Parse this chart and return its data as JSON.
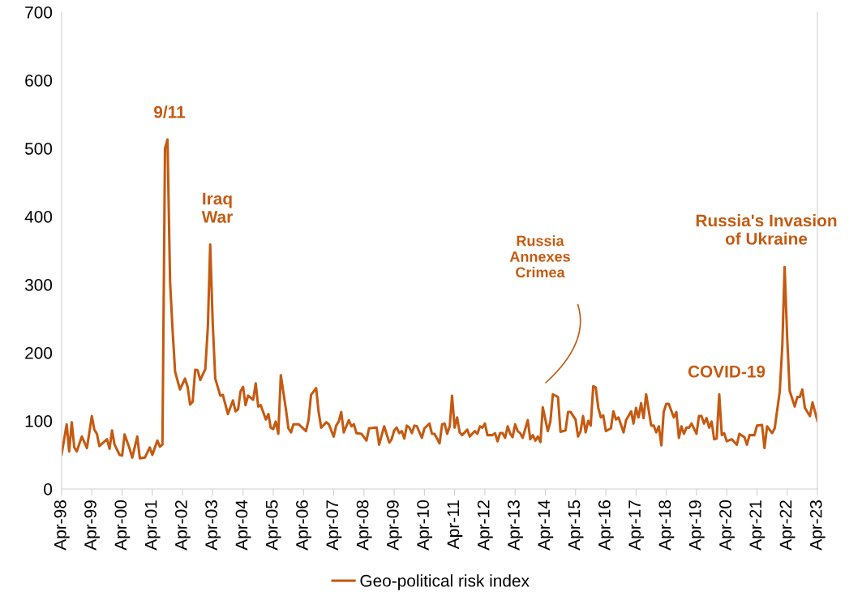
{
  "chart_data": {
    "type": "line",
    "x": [
      "1998-04",
      "1998-06",
      "1998-07",
      "1998-08",
      "1998-09",
      "1998-10",
      "1998-12",
      "1999-02",
      "1999-04",
      "1999-05",
      "1999-06",
      "1999-07",
      "1999-10",
      "1999-11",
      "1999-12",
      "2000-01",
      "2000-03",
      "2000-04",
      "2000-05",
      "2000-07",
      "2000-08",
      "2000-10",
      "2000-11",
      "2001-01",
      "2001-03",
      "2001-04",
      "2001-06",
      "2001-07",
      "2001-08",
      "2001-09",
      "2001-10",
      "2001-11",
      "2001-12",
      "2002-01",
      "2002-03",
      "2002-05",
      "2002-06",
      "2002-07",
      "2002-08",
      "2002-09",
      "2002-10",
      "2002-11",
      "2003-01",
      "2003-02",
      "2003-03",
      "2003-04",
      "2003-05",
      "2003-07",
      "2003-08",
      "2003-10",
      "2003-12",
      "2004-01",
      "2004-02",
      "2004-03",
      "2004-04",
      "2004-05",
      "2004-06",
      "2004-08",
      "2004-09",
      "2004-10",
      "2004-11",
      "2005-01",
      "2005-02",
      "2005-03",
      "2005-04",
      "2005-05",
      "2005-06",
      "2005-07",
      "2005-09",
      "2005-10",
      "2005-11",
      "2005-12",
      "2006-02",
      "2006-05",
      "2006-06",
      "2006-07",
      "2006-09",
      "2006-10",
      "2006-11",
      "2007-01",
      "2007-02",
      "2007-04",
      "2007-05",
      "2007-06",
      "2007-07",
      "2007-08",
      "2007-10",
      "2007-11",
      "2007-12",
      "2008-01",
      "2008-03",
      "2008-05",
      "2008-06",
      "2008-08",
      "2008-09",
      "2008-10",
      "2008-12",
      "2009-02",
      "2009-03",
      "2009-04",
      "2009-05",
      "2009-06",
      "2009-07",
      "2009-08",
      "2009-09",
      "2009-10",
      "2009-11",
      "2009-12",
      "2010-01",
      "2010-03",
      "2010-04",
      "2010-06",
      "2010-07",
      "2010-08",
      "2010-10",
      "2010-11",
      "2010-12",
      "2011-01",
      "2011-02",
      "2011-03",
      "2011-04",
      "2011-05",
      "2011-06",
      "2011-07",
      "2011-09",
      "2011-10",
      "2011-12",
      "2012-01",
      "2012-02",
      "2012-03",
      "2012-04",
      "2012-05",
      "2012-07",
      "2012-08",
      "2012-09",
      "2012-10",
      "2012-11",
      "2012-12",
      "2013-01",
      "2013-02",
      "2013-03",
      "2013-04",
      "2013-05",
      "2013-06",
      "2013-07",
      "2013-09",
      "2013-10",
      "2013-11",
      "2013-12",
      "2014-01",
      "2014-02",
      "2014-03",
      "2014-05",
      "2014-06",
      "2014-07",
      "2014-09",
      "2014-10",
      "2014-12",
      "2015-01",
      "2015-02",
      "2015-04",
      "2015-05",
      "2015-06",
      "2015-07",
      "2015-08",
      "2015-09",
      "2015-10",
      "2015-11",
      "2015-12",
      "2016-01",
      "2016-02",
      "2016-03",
      "2016-04",
      "2016-06",
      "2016-07",
      "2016-08",
      "2016-09",
      "2016-11",
      "2016-12",
      "2017-02",
      "2017-03",
      "2017-04",
      "2017-05",
      "2017-06",
      "2017-07",
      "2017-08",
      "2017-10",
      "2017-11",
      "2017-12",
      "2018-01",
      "2018-02",
      "2018-03",
      "2018-04",
      "2018-05",
      "2018-07",
      "2018-08",
      "2018-09",
      "2018-10",
      "2018-11",
      "2018-12",
      "2019-01",
      "2019-02",
      "2019-04",
      "2019-05",
      "2019-06",
      "2019-07",
      "2019-08",
      "2019-09",
      "2019-10",
      "2019-11",
      "2019-12",
      "2020-01",
      "2020-02",
      "2020-03",
      "2020-04",
      "2020-06",
      "2020-08",
      "2020-09",
      "2020-11",
      "2020-12",
      "2021-01",
      "2021-03",
      "2021-04",
      "2021-06",
      "2021-07",
      "2021-08",
      "2021-10",
      "2021-11",
      "2022-01",
      "2022-02",
      "2022-03",
      "2022-04",
      "2022-05",
      "2022-07",
      "2022-08",
      "2022-09",
      "2022-10",
      "2022-11",
      "2022-12",
      "2023-01",
      "2023-02",
      "2023-04"
    ],
    "series": [
      {
        "name": "Geo-political risk index",
        "color": "#c55a11",
        "values": [
          51,
          95,
          55,
          98,
          61,
          55,
          77,
          60,
          107,
          87,
          81,
          63,
          73,
          59,
          86,
          65,
          50,
          49,
          80,
          59,
          46,
          77,
          45,
          46,
          61,
          50,
          71,
          62,
          65,
          500,
          513,
          305,
          234,
          172,
          146,
          162,
          150,
          124,
          128,
          175,
          174,
          160,
          176,
          239,
          359,
          242,
          162,
          137,
          138,
          110,
          130,
          114,
          117,
          143,
          150,
          123,
          137,
          131,
          155,
          121,
          123,
          102,
          110,
          90,
          88,
          99,
          81,
          167,
          117,
          89,
          83,
          95,
          95,
          85,
          101,
          138,
          148,
          113,
          90,
          98,
          95,
          77,
          93,
          99,
          113,
          83,
          101,
          92,
          95,
          82,
          81,
          71,
          89,
          90,
          90,
          65,
          92,
          68,
          73,
          86,
          90,
          82,
          85,
          74,
          93,
          90,
          82,
          93,
          92,
          75,
          89,
          96,
          81,
          81,
          67,
          95,
          96,
          81,
          92,
          137,
          90,
          105,
          83,
          79,
          87,
          77,
          85,
          81,
          92,
          90,
          96,
          79,
          79,
          82,
          70,
          82,
          82,
          75,
          92,
          81,
          76,
          95,
          85,
          82,
          75,
          101,
          73,
          79,
          71,
          77,
          69,
          120,
          85,
          99,
          139,
          135,
          84,
          86,
          113,
          113,
          102,
          77,
          85,
          107,
          83,
          100,
          93,
          151,
          149,
          119,
          105,
          108,
          85,
          89,
          114,
          102,
          105,
          83,
          101,
          114,
          96,
          119,
          105,
          126,
          104,
          139,
          93,
          93,
          83,
          92,
          64,
          113,
          125,
          125,
          105,
          113,
          75,
          92,
          81,
          90,
          90,
          96,
          81,
          107,
          107,
          96,
          104,
          90,
          99,
          73,
          74,
          139,
          79,
          82,
          70,
          73,
          65,
          81,
          76,
          65,
          79,
          79,
          93,
          94,
          60,
          92,
          82,
          89,
          143,
          210,
          326,
          222,
          144,
          121,
          135,
          135,
          146,
          119,
          113,
          107,
          127,
          100
        ]
      }
    ],
    "xlim": [
      "1998-04",
      "2023-04"
    ],
    "xticks": [
      {
        "value": "1998-04",
        "label": "Apr-98"
      },
      {
        "value": "1999-04",
        "label": "Apr-99"
      },
      {
        "value": "2000-04",
        "label": "Apr-00"
      },
      {
        "value": "2001-04",
        "label": "Apr-01"
      },
      {
        "value": "2002-04",
        "label": "Apr-02"
      },
      {
        "value": "2003-04",
        "label": "Apr-03"
      },
      {
        "value": "2004-04",
        "label": "Apr-04"
      },
      {
        "value": "2005-04",
        "label": "Apr-05"
      },
      {
        "value": "2006-04",
        "label": "Apr-06"
      },
      {
        "value": "2007-04",
        "label": "Apr-07"
      },
      {
        "value": "2008-04",
        "label": "Apr-08"
      },
      {
        "value": "2009-04",
        "label": "Apr-09"
      },
      {
        "value": "2010-04",
        "label": "Apr-10"
      },
      {
        "value": "2011-04",
        "label": "Apr-11"
      },
      {
        "value": "2012-04",
        "label": "Apr-12"
      },
      {
        "value": "2013-04",
        "label": "Apr-13"
      },
      {
        "value": "2014-04",
        "label": "Apr-14"
      },
      {
        "value": "2015-04",
        "label": "Apr-15"
      },
      {
        "value": "2016-04",
        "label": "Apr-16"
      },
      {
        "value": "2017-04",
        "label": "Apr-17"
      },
      {
        "value": "2018-04",
        "label": "Apr-18"
      },
      {
        "value": "2019-04",
        "label": "Apr-19"
      },
      {
        "value": "2020-04",
        "label": "Apr-20"
      },
      {
        "value": "2021-04",
        "label": "Apr-21"
      },
      {
        "value": "2022-04",
        "label": "Apr-22"
      },
      {
        "value": "2023-04",
        "label": "Apr-23"
      }
    ],
    "ylim": [
      0,
      700
    ],
    "yticks": [
      0,
      100,
      200,
      300,
      400,
      500,
      600,
      700
    ],
    "annotations": [
      "9/11",
      "Iraq\nWar",
      "Russia\nAnnexes\nCrimea",
      "COVID-19",
      "Russia's Invasion\nof Ukraine"
    ],
    "grid": false,
    "legend": "bottom",
    "marker": "none",
    "line_style": "solid"
  }
}
